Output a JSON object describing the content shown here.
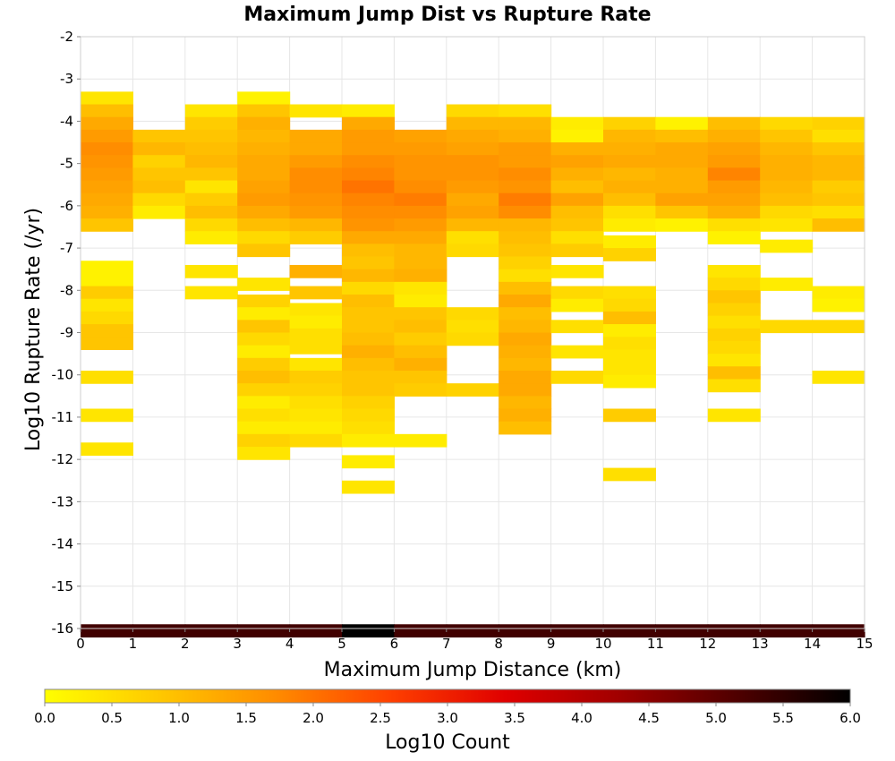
{
  "chart_data": {
    "type": "heatmap",
    "title": "Maximum Jump Dist vs Rupture Rate",
    "xlabel": "Maximum Jump Distance (km)",
    "ylabel": "Log10 Rupture Rate (/yr)",
    "colorbar_label": "Log10 Count",
    "xlim": [
      0,
      15
    ],
    "ylim": [
      -16,
      -2
    ],
    "x_ticks": [
      "0",
      "1",
      "2",
      "3",
      "4",
      "5",
      "6",
      "7",
      "8",
      "9",
      "10",
      "11",
      "12",
      "13",
      "14",
      "15"
    ],
    "y_ticks": [
      "-2",
      "-3",
      "-4",
      "-5",
      "-6",
      "-7",
      "-8",
      "-9",
      "-10",
      "-11",
      "-12",
      "-13",
      "-14",
      "-15",
      "-16"
    ],
    "colorbar_ticks": [
      "0.0",
      "0.5",
      "1.0",
      "1.5",
      "2.0",
      "2.5",
      "3.0",
      "3.5",
      "4.0",
      "4.5",
      "5.0",
      "5.5",
      "6.0"
    ],
    "colorbar_range": [
      0,
      6
    ],
    "colormap": [
      "#ffff00",
      "#ffc800",
      "#ff8c00",
      "#ff4000",
      "#e00000",
      "#a00000",
      "#500000",
      "#000000"
    ],
    "bin_width_x": 1,
    "bin_height_y": 0.3,
    "columns": [
      {
        "x0": 0,
        "bins": [
          [
            -3.3,
            0.4
          ],
          [
            -3.6,
            1.0
          ],
          [
            -3.9,
            1.3
          ],
          [
            -4.2,
            1.5
          ],
          [
            -4.5,
            1.7
          ],
          [
            -4.8,
            1.6
          ],
          [
            -5.1,
            1.5
          ],
          [
            -5.4,
            1.4
          ],
          [
            -5.7,
            1.3
          ],
          [
            -6.0,
            1.2
          ],
          [
            -6.3,
            0.9
          ],
          [
            -7.3,
            0.2
          ],
          [
            -7.6,
            0.2
          ],
          [
            -7.9,
            0.8
          ],
          [
            -8.2,
            0.4
          ],
          [
            -8.5,
            0.6
          ],
          [
            -8.8,
            0.9
          ],
          [
            -9.1,
            0.9
          ],
          [
            -9.9,
            0.5
          ],
          [
            -10.8,
            0.4
          ],
          [
            -11.6,
            0.4
          ],
          [
            -15.9,
            5.3
          ]
        ]
      },
      {
        "x0": 1,
        "bins": [
          [
            -4.2,
            0.9
          ],
          [
            -4.5,
            1.1
          ],
          [
            -4.8,
            0.7
          ],
          [
            -5.1,
            0.9
          ],
          [
            -5.4,
            1.0
          ],
          [
            -5.7,
            0.6
          ],
          [
            -6.0,
            0.3
          ],
          [
            -15.9,
            5.3
          ]
        ]
      },
      {
        "x0": 2,
        "bins": [
          [
            -3.6,
            0.4
          ],
          [
            -3.9,
            0.8
          ],
          [
            -4.2,
            0.9
          ],
          [
            -4.5,
            1.0
          ],
          [
            -4.8,
            1.1
          ],
          [
            -5.1,
            0.9
          ],
          [
            -5.4,
            0.4
          ],
          [
            -5.7,
            0.8
          ],
          [
            -6.0,
            1.0
          ],
          [
            -6.3,
            0.6
          ],
          [
            -6.6,
            0.3
          ],
          [
            -7.4,
            0.4
          ],
          [
            -7.9,
            0.4
          ],
          [
            -15.9,
            5.3
          ]
        ]
      },
      {
        "x0": 3,
        "bins": [
          [
            -3.3,
            0.2
          ],
          [
            -3.6,
            0.9
          ],
          [
            -3.9,
            1.2
          ],
          [
            -4.2,
            1.1
          ],
          [
            -4.5,
            1.2
          ],
          [
            -4.8,
            1.3
          ],
          [
            -5.1,
            1.3
          ],
          [
            -5.4,
            1.4
          ],
          [
            -5.7,
            1.5
          ],
          [
            -6.0,
            1.3
          ],
          [
            -6.3,
            1.0
          ],
          [
            -6.6,
            0.6
          ],
          [
            -6.9,
            0.9
          ],
          [
            -7.7,
            0.4
          ],
          [
            -8.1,
            0.7
          ],
          [
            -8.4,
            0.3
          ],
          [
            -8.7,
            0.9
          ],
          [
            -9.0,
            0.6
          ],
          [
            -9.3,
            0.3
          ],
          [
            -9.6,
            0.8
          ],
          [
            -9.9,
            1.0
          ],
          [
            -10.2,
            0.7
          ],
          [
            -10.5,
            0.3
          ],
          [
            -10.8,
            0.5
          ],
          [
            -11.1,
            0.3
          ],
          [
            -11.4,
            0.7
          ],
          [
            -11.7,
            0.4
          ],
          [
            -15.9,
            5.3
          ]
        ]
      },
      {
        "x0": 4,
        "bins": [
          [
            -3.6,
            0.4
          ],
          [
            -4.2,
            1.3
          ],
          [
            -4.5,
            1.3
          ],
          [
            -4.8,
            1.5
          ],
          [
            -5.1,
            1.7
          ],
          [
            -5.4,
            1.7
          ],
          [
            -5.7,
            1.6
          ],
          [
            -6.0,
            1.5
          ],
          [
            -6.3,
            1.1
          ],
          [
            -6.6,
            0.8
          ],
          [
            -7.4,
            1.2
          ],
          [
            -7.9,
            0.9
          ],
          [
            -8.3,
            0.4
          ],
          [
            -8.6,
            0.3
          ],
          [
            -8.9,
            0.5
          ],
          [
            -9.2,
            0.5
          ],
          [
            -9.6,
            0.4
          ],
          [
            -9.9,
            0.8
          ],
          [
            -10.2,
            0.7
          ],
          [
            -10.5,
            0.5
          ],
          [
            -10.8,
            0.4
          ],
          [
            -11.1,
            0.3
          ],
          [
            -11.4,
            0.6
          ],
          [
            -15.9,
            5.3
          ]
        ]
      },
      {
        "x0": 5,
        "bins": [
          [
            -3.6,
            0.3
          ],
          [
            -3.9,
            1.3
          ],
          [
            -4.2,
            1.5
          ],
          [
            -4.5,
            1.5
          ],
          [
            -4.8,
            1.7
          ],
          [
            -5.1,
            1.8
          ],
          [
            -5.4,
            2.0
          ],
          [
            -5.7,
            1.8
          ],
          [
            -6.0,
            1.7
          ],
          [
            -6.3,
            1.6
          ],
          [
            -6.6,
            1.3
          ],
          [
            -6.9,
            1.0
          ],
          [
            -7.2,
            0.9
          ],
          [
            -7.5,
            1.1
          ],
          [
            -7.8,
            0.6
          ],
          [
            -8.1,
            1.0
          ],
          [
            -8.4,
            0.9
          ],
          [
            -8.7,
            0.9
          ],
          [
            -9.0,
            1.0
          ],
          [
            -9.3,
            1.2
          ],
          [
            -9.6,
            1.0
          ],
          [
            -9.9,
            0.9
          ],
          [
            -10.2,
            0.9
          ],
          [
            -10.5,
            0.7
          ],
          [
            -10.8,
            0.6
          ],
          [
            -11.1,
            0.5
          ],
          [
            -11.4,
            0.3
          ],
          [
            -11.9,
            0.3
          ],
          [
            -12.5,
            0.4
          ],
          [
            -15.9,
            6.0
          ]
        ]
      },
      {
        "x0": 6,
        "bins": [
          [
            -4.2,
            1.4
          ],
          [
            -4.5,
            1.5
          ],
          [
            -4.8,
            1.6
          ],
          [
            -5.1,
            1.6
          ],
          [
            -5.4,
            1.7
          ],
          [
            -5.7,
            1.9
          ],
          [
            -6.0,
            1.7
          ],
          [
            -6.3,
            1.5
          ],
          [
            -6.6,
            1.3
          ],
          [
            -6.9,
            1.1
          ],
          [
            -7.2,
            1.1
          ],
          [
            -7.5,
            1.2
          ],
          [
            -7.8,
            0.4
          ],
          [
            -8.1,
            0.3
          ],
          [
            -8.4,
            0.9
          ],
          [
            -8.7,
            1.0
          ],
          [
            -9.0,
            0.8
          ],
          [
            -9.3,
            1.0
          ],
          [
            -9.6,
            1.2
          ],
          [
            -9.9,
            0.9
          ],
          [
            -10.2,
            0.8
          ],
          [
            -11.4,
            0.3
          ],
          [
            -15.9,
            5.3
          ]
        ]
      },
      {
        "x0": 7,
        "bins": [
          [
            -3.6,
            0.6
          ],
          [
            -3.9,
            1.1
          ],
          [
            -4.2,
            1.3
          ],
          [
            -4.5,
            1.4
          ],
          [
            -4.8,
            1.6
          ],
          [
            -5.1,
            1.6
          ],
          [
            -5.4,
            1.5
          ],
          [
            -5.7,
            1.3
          ],
          [
            -6.0,
            1.4
          ],
          [
            -6.3,
            1.1
          ],
          [
            -6.6,
            0.5
          ],
          [
            -6.9,
            0.6
          ],
          [
            -8.4,
            0.6
          ],
          [
            -8.7,
            0.5
          ],
          [
            -9.0,
            0.6
          ],
          [
            -10.2,
            0.7
          ],
          [
            -15.9,
            5.3
          ]
        ]
      },
      {
        "x0": 8,
        "bins": [
          [
            -3.6,
            0.5
          ],
          [
            -3.9,
            1.1
          ],
          [
            -4.2,
            1.2
          ],
          [
            -4.5,
            1.5
          ],
          [
            -4.8,
            1.5
          ],
          [
            -5.1,
            1.7
          ],
          [
            -5.4,
            1.6
          ],
          [
            -5.7,
            1.9
          ],
          [
            -6.0,
            1.7
          ],
          [
            -6.3,
            1.1
          ],
          [
            -6.6,
            1.0
          ],
          [
            -6.9,
            0.9
          ],
          [
            -7.2,
            0.7
          ],
          [
            -7.5,
            0.5
          ],
          [
            -7.8,
            1.0
          ],
          [
            -8.1,
            1.3
          ],
          [
            -8.4,
            1.0
          ],
          [
            -8.7,
            1.1
          ],
          [
            -9.0,
            1.3
          ],
          [
            -9.3,
            1.2
          ],
          [
            -9.6,
            1.1
          ],
          [
            -9.9,
            1.3
          ],
          [
            -10.2,
            1.3
          ],
          [
            -10.5,
            1.1
          ],
          [
            -10.8,
            1.2
          ],
          [
            -11.1,
            1.0
          ],
          [
            -15.9,
            5.3
          ]
        ]
      },
      {
        "x0": 9,
        "bins": [
          [
            -3.9,
            0.3
          ],
          [
            -4.2,
            0.2
          ],
          [
            -4.5,
            1.2
          ],
          [
            -4.8,
            1.4
          ],
          [
            -5.1,
            1.2
          ],
          [
            -5.4,
            1.0
          ],
          [
            -5.7,
            1.4
          ],
          [
            -6.0,
            1.0
          ],
          [
            -6.3,
            0.9
          ],
          [
            -6.6,
            0.5
          ],
          [
            -6.9,
            0.8
          ],
          [
            -7.4,
            0.4
          ],
          [
            -7.9,
            0.6
          ],
          [
            -8.2,
            0.3
          ],
          [
            -8.7,
            0.5
          ],
          [
            -9.3,
            0.4
          ],
          [
            -9.9,
            0.6
          ],
          [
            -15.9,
            5.3
          ]
        ]
      },
      {
        "x0": 10,
        "bins": [
          [
            -3.9,
            0.7
          ],
          [
            -4.2,
            1.1
          ],
          [
            -4.5,
            1.2
          ],
          [
            -4.8,
            1.3
          ],
          [
            -5.1,
            1.1
          ],
          [
            -5.4,
            1.2
          ],
          [
            -5.7,
            1.0
          ],
          [
            -6.0,
            0.5
          ],
          [
            -6.3,
            0.3
          ],
          [
            -6.7,
            0.3
          ],
          [
            -7.0,
            0.7
          ],
          [
            -7.9,
            0.5
          ],
          [
            -8.2,
            0.6
          ],
          [
            -8.5,
            1.0
          ],
          [
            -8.8,
            0.3
          ],
          [
            -9.1,
            0.5
          ],
          [
            -9.4,
            0.4
          ],
          [
            -9.7,
            0.4
          ],
          [
            -10.0,
            0.3
          ],
          [
            -10.8,
            0.8
          ],
          [
            -12.2,
            0.5
          ],
          [
            -15.9,
            5.3
          ]
        ]
      },
      {
        "x0": 11,
        "bins": [
          [
            -3.9,
            0.2
          ],
          [
            -4.2,
            1.0
          ],
          [
            -4.5,
            1.3
          ],
          [
            -4.8,
            1.3
          ],
          [
            -5.1,
            1.2
          ],
          [
            -5.4,
            1.2
          ],
          [
            -5.7,
            1.4
          ],
          [
            -6.0,
            0.9
          ],
          [
            -6.3,
            0.2
          ],
          [
            -15.9,
            5.3
          ]
        ]
      },
      {
        "x0": 12,
        "bins": [
          [
            -3.9,
            1.0
          ],
          [
            -4.2,
            1.2
          ],
          [
            -4.5,
            1.4
          ],
          [
            -4.8,
            1.5
          ],
          [
            -5.1,
            1.8
          ],
          [
            -5.4,
            1.5
          ],
          [
            -5.7,
            1.4
          ],
          [
            -6.0,
            1.2
          ],
          [
            -6.3,
            0.5
          ],
          [
            -6.6,
            0.2
          ],
          [
            -7.4,
            0.4
          ],
          [
            -7.7,
            0.6
          ],
          [
            -8.0,
            0.9
          ],
          [
            -8.3,
            0.7
          ],
          [
            -8.6,
            0.5
          ],
          [
            -8.9,
            0.7
          ],
          [
            -9.2,
            0.6
          ],
          [
            -9.5,
            0.4
          ],
          [
            -9.8,
            1.0
          ],
          [
            -10.1,
            0.5
          ],
          [
            -10.8,
            0.4
          ],
          [
            -15.9,
            5.3
          ]
        ]
      },
      {
        "x0": 13,
        "bins": [
          [
            -3.9,
            0.6
          ],
          [
            -4.2,
            0.9
          ],
          [
            -4.5,
            1.1
          ],
          [
            -4.8,
            1.2
          ],
          [
            -5.1,
            1.2
          ],
          [
            -5.4,
            1.1
          ],
          [
            -5.7,
            1.0
          ],
          [
            -6.0,
            0.6
          ],
          [
            -6.3,
            0.4
          ],
          [
            -6.8,
            0.3
          ],
          [
            -7.7,
            0.3
          ],
          [
            -8.7,
            0.6
          ],
          [
            -15.9,
            5.3
          ]
        ]
      },
      {
        "x0": 14,
        "bins": [
          [
            -3.9,
            0.7
          ],
          [
            -4.2,
            0.5
          ],
          [
            -4.5,
            0.9
          ],
          [
            -4.8,
            1.1
          ],
          [
            -5.1,
            1.1
          ],
          [
            -5.4,
            0.8
          ],
          [
            -5.7,
            0.9
          ],
          [
            -6.0,
            0.5
          ],
          [
            -6.3,
            1.0
          ],
          [
            -7.9,
            0.3
          ],
          [
            -8.2,
            0.2
          ],
          [
            -8.7,
            0.6
          ],
          [
            -9.9,
            0.4
          ],
          [
            -15.9,
            5.3
          ]
        ]
      }
    ]
  }
}
